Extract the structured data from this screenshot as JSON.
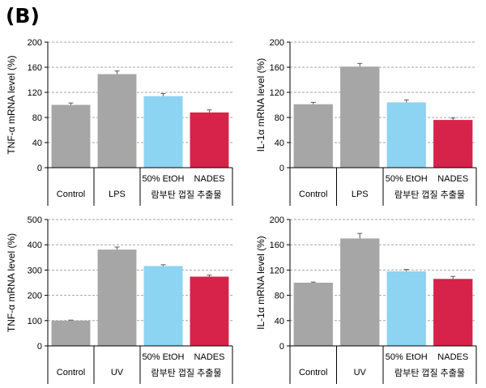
{
  "figure": {
    "label": "(B)"
  },
  "colors": {
    "control": "#a6a6a6",
    "etoh": "#8dd3f2",
    "nades": "#d7234a",
    "grid": "#a6a6a6",
    "error": "#595959"
  },
  "chart_data": [
    {
      "type": "bar",
      "ylabel": "TNF-α mRNA level (%)",
      "ylim": [
        0,
        200
      ],
      "yticks": [
        0,
        40,
        80,
        120,
        160,
        200
      ],
      "categories": [
        "Control",
        "LPS",
        "50% EtOH",
        "NADES"
      ],
      "values": [
        100,
        149,
        114,
        88
      ],
      "errors": [
        3,
        5,
        4,
        4
      ],
      "group_label": "람부탄 껍질 추출물",
      "grid": true
    },
    {
      "type": "bar",
      "ylabel": "IL-1α mRNA level (%)",
      "ylim": [
        0,
        200
      ],
      "yticks": [
        0,
        40,
        80,
        120,
        160,
        200
      ],
      "categories": [
        "Control",
        "LPS",
        "50% EtOH",
        "NADES"
      ],
      "values": [
        101,
        161,
        104,
        76
      ],
      "errors": [
        3,
        5,
        4,
        3
      ],
      "group_label": "람부탄 껍질 추출물",
      "grid": true
    },
    {
      "type": "bar",
      "ylabel": "TNF-α mRNA level (%)",
      "ylim": [
        0,
        500
      ],
      "yticks": [
        0,
        100,
        200,
        300,
        400,
        500
      ],
      "categories": [
        "Control",
        "UV",
        "50% EtOH",
        "NADES"
      ],
      "values": [
        100,
        381,
        316,
        274
      ],
      "errors": [
        2,
        10,
        5,
        6
      ],
      "group_label": "람부탄 껍질 추출물",
      "grid": true
    },
    {
      "type": "bar",
      "ylabel": "IL-1α mRNA level (%)",
      "ylim": [
        0,
        200
      ],
      "yticks": [
        0,
        40,
        80,
        120,
        160,
        200
      ],
      "categories": [
        "Control",
        "UV",
        "50% EtOH",
        "NADES"
      ],
      "values": [
        100,
        170,
        118,
        106
      ],
      "errors": [
        1,
        8,
        3,
        4
      ],
      "group_label": "람부탄 껍질 추출물",
      "grid": true
    }
  ]
}
